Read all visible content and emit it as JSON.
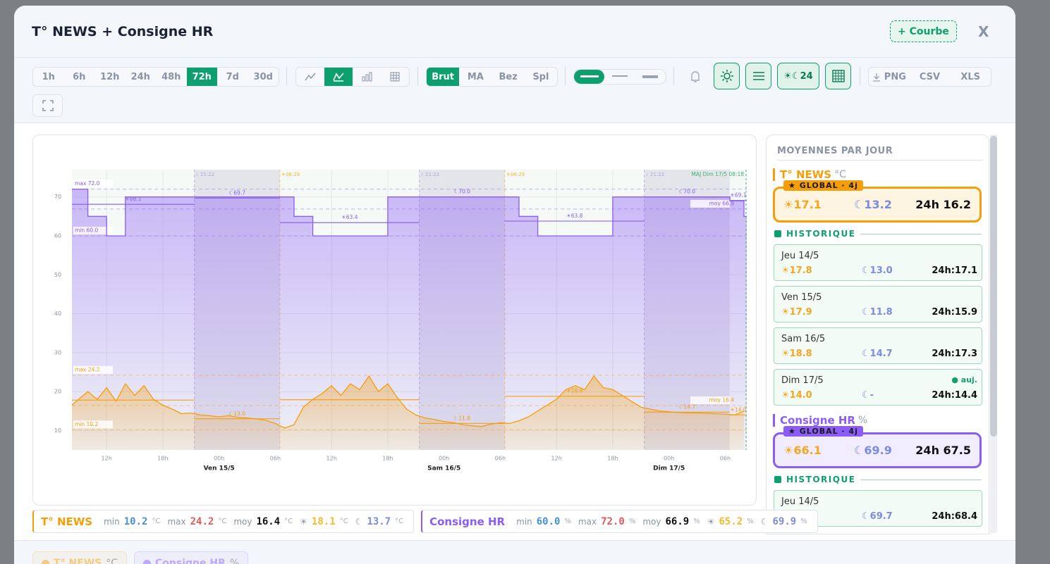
{
  "header": {
    "title": "T° NEWS + Consigne HR",
    "add_button": "+ Courbe",
    "close": "X"
  },
  "toolbar": {
    "ranges": [
      "1h",
      "6h",
      "12h",
      "24h",
      "48h",
      "72h",
      "7d",
      "30d"
    ],
    "active_range": "72h",
    "smoothing": [
      "Brut",
      "MA",
      "Bez",
      "Spl"
    ],
    "active_smoothing": "Brut",
    "daynight_button": "☀☾24",
    "export": [
      "PNG",
      "CSV",
      "XLS"
    ]
  },
  "chart_data": {
    "type": "line",
    "xlim": [
      8.3,
      80.3
    ],
    "ylim": [
      5,
      77
    ],
    "xticks": [
      {
        "value": 12,
        "label": "12h"
      },
      {
        "value": 18,
        "label": "18h"
      },
      {
        "value": 24,
        "label": "00h"
      },
      {
        "value": 30,
        "label": "06h"
      },
      {
        "value": 36,
        "label": "12h"
      },
      {
        "value": 42,
        "label": "18h"
      },
      {
        "value": 48,
        "label": "00h"
      },
      {
        "value": 54,
        "label": "06h"
      },
      {
        "value": 60,
        "label": "12h"
      },
      {
        "value": 66,
        "label": "18h"
      },
      {
        "value": 72,
        "label": "00h"
      },
      {
        "value": 78,
        "label": "06h"
      }
    ],
    "day_labels": [
      {
        "value": 24,
        "label": "Ven 15/5"
      },
      {
        "value": 48,
        "label": "Sam 16/5"
      },
      {
        "value": 72,
        "label": "Dim 17/5"
      }
    ],
    "yticks": [
      10,
      20,
      30,
      40,
      50,
      60,
      70
    ],
    "grid": true,
    "nights": [
      {
        "start": 21.37,
        "end": 30.48,
        "start_label": "☾21:22",
        "end_label": "☀06:29"
      },
      {
        "start": 45.37,
        "end": 54.48,
        "start_label": "☾21:22",
        "end_label": "☀06:29"
      },
      {
        "start": 69.37,
        "end": 78.48,
        "start_label": "☾21:22"
      }
    ],
    "update": {
      "x": 80.3,
      "label": "MAJ Dim 17/5 08:18"
    },
    "series": [
      {
        "name": "Consigne HR",
        "color": "#8b5cf6",
        "x": [
          8.3,
          10,
          10,
          12,
          12,
          14,
          14,
          32,
          32,
          34,
          34,
          42,
          42,
          56,
          56,
          58,
          58,
          66,
          66,
          78.5,
          78.5,
          80,
          80,
          80.3
        ],
        "values": [
          72,
          72,
          65,
          65,
          60,
          60,
          70,
          70,
          65,
          65,
          60,
          60,
          70,
          70,
          65,
          65,
          60,
          60,
          70,
          70,
          69,
          69,
          65,
          65
        ],
        "reference_lines": [
          {
            "value": 72,
            "label": "max 72.0"
          },
          {
            "value": 60,
            "label": "min 60.0"
          },
          {
            "value": 66.9,
            "label": "moy 66.9"
          }
        ],
        "segments": [
          {
            "start": 8.3,
            "end": 21.37,
            "value": 68.1,
            "label": "☀68.1"
          },
          {
            "start": 21.37,
            "end": 30.48,
            "value": 69.7,
            "label": "☾69.7"
          },
          {
            "start": 30.48,
            "end": 45.37,
            "value": 63.4,
            "label": "☀63.4"
          },
          {
            "start": 45.37,
            "end": 54.48,
            "value": 70,
            "label": "☾70.0"
          },
          {
            "start": 54.48,
            "end": 69.37,
            "value": 63.8,
            "label": "☀63.8"
          },
          {
            "start": 69.37,
            "end": 78.48,
            "value": 70,
            "label": "☾70.0"
          },
          {
            "start": 78.48,
            "end": 80.3,
            "value": 69.1,
            "label": "☀69.1"
          }
        ]
      },
      {
        "name": "T° NEWS",
        "color": "#f59e0b",
        "x": [
          8.3,
          9,
          10,
          11,
          12,
          13,
          14,
          15,
          16,
          17,
          18,
          19,
          20,
          21,
          22,
          23,
          24,
          25,
          26,
          27,
          28,
          29,
          30,
          31,
          32,
          33,
          34,
          35,
          36,
          37,
          38,
          39,
          40,
          41,
          42,
          43,
          44,
          45,
          46,
          47,
          48,
          49,
          50,
          51,
          52,
          53,
          54,
          55,
          56,
          57,
          58,
          59,
          60,
          61,
          62,
          63,
          64,
          65,
          66,
          67,
          68,
          69,
          70,
          71,
          72,
          73,
          74,
          75,
          76,
          77,
          78,
          79,
          80
        ],
        "values": [
          16.5,
          18,
          20,
          18,
          21,
          17.5,
          22,
          19,
          21.5,
          18,
          16.5,
          15.5,
          14.3,
          14.5,
          14,
          13.8,
          13.5,
          13.8,
          13.4,
          13.2,
          13,
          12.6,
          11.8,
          10.6,
          11.5,
          16,
          18,
          19.5,
          21.5,
          19,
          22,
          20.5,
          24,
          20,
          22,
          18.5,
          15.5,
          14,
          13.2,
          12.8,
          12.3,
          12,
          11.5,
          11.2,
          11,
          11.6,
          12,
          11.8,
          12.5,
          13.5,
          15,
          16.5,
          18,
          20.5,
          21.5,
          20.5,
          24,
          21,
          20.5,
          19,
          17.5,
          16,
          15.5,
          15,
          14.8,
          14.6,
          14.5,
          14.5,
          14.4,
          14.3,
          14.2,
          14,
          15
        ],
        "reference_lines": [
          {
            "value": 24.2,
            "label": "max 24.2"
          },
          {
            "value": 10.2,
            "label": "min 10.2"
          },
          {
            "value": 16.4,
            "label": "moy 16.4"
          }
        ],
        "segments": [
          {
            "start": 8.3,
            "end": 21.37,
            "value": 17.8
          },
          {
            "start": 21.37,
            "end": 30.48,
            "value": 13,
            "label": "☾13.0"
          },
          {
            "start": 30.48,
            "end": 45.37,
            "value": 17.9
          },
          {
            "start": 45.37,
            "end": 54.48,
            "value": 11.8,
            "label": "☾11.8"
          },
          {
            "start": 54.48,
            "end": 69.37,
            "value": 18.8,
            "label": "☀18.8"
          },
          {
            "start": 69.37,
            "end": 78.48,
            "value": 14.7,
            "label": "☾14.7"
          },
          {
            "start": 78.48,
            "end": 80.3,
            "value": 14,
            "label": "☀14.0"
          }
        ]
      }
    ]
  },
  "stats": [
    {
      "name": "T° NEWS",
      "color": "#f59e0b",
      "items": [
        {
          "label": "min",
          "value": "10.2",
          "unit": "°C",
          "color": "#4a90d9"
        },
        {
          "label": "max",
          "value": "24.2",
          "unit": "°C",
          "color": "#e05a5a"
        },
        {
          "label": "moy",
          "value": "16.4",
          "unit": "°C",
          "color": "#111111"
        },
        {
          "label": "☀",
          "value": "18.1",
          "unit": "°C",
          "color": "#f5b82e"
        },
        {
          "label": "☾",
          "value": "13.7",
          "unit": "°C",
          "color": "#7b8ce0"
        }
      ]
    },
    {
      "name": "Consigne HR",
      "color": "#8b5cf6",
      "items": [
        {
          "label": "min",
          "value": "60.0",
          "unit": "%",
          "color": "#4a90d9"
        },
        {
          "label": "max",
          "value": "72.0",
          "unit": "%",
          "color": "#e05a5a"
        },
        {
          "label": "moy",
          "value": "66.9",
          "unit": "%",
          "color": "#111111"
        },
        {
          "label": "☀",
          "value": "65.2",
          "unit": "%",
          "color": "#f5b82e"
        },
        {
          "label": "☾",
          "value": "69.9",
          "unit": "%",
          "color": "#7b8ce0"
        }
      ]
    }
  ],
  "sidebar": {
    "title": "MOYENNES PAR JOUR",
    "history_label": "HISTORIQUE",
    "groups": [
      {
        "name": "T° NEWS",
        "unit": "°C",
        "color": "#f59e0b",
        "badge": "★ GLOBAL · 4j",
        "global": {
          "sun": "☀17.1",
          "moon": "☾13.2",
          "h24": "24h 16.2"
        },
        "days": [
          {
            "day": "Jeu 14/5",
            "sun": "☀17.8",
            "moon": "☾13.0",
            "h24": "24h:17.1"
          },
          {
            "day": "Ven 15/5",
            "sun": "☀17.9",
            "moon": "☾11.8",
            "h24": "24h:15.9"
          },
          {
            "day": "Sam 16/5",
            "sun": "☀18.8",
            "moon": "☾14.7",
            "h24": "24h:17.3"
          },
          {
            "day": "Dim 17/5",
            "tag": "● auj.",
            "sun": "☀14.0",
            "moon": "☾-",
            "h24": "24h:14.4"
          }
        ]
      },
      {
        "name": "Consigne HR",
        "unit": "%",
        "color": "#8b5cf6",
        "badge": "★ GLOBAL · 4j",
        "global": {
          "sun": "☀66.1",
          "moon": "☾69.9",
          "h24": "24h 67.5"
        },
        "days": [
          {
            "day": "Jeu 14/5",
            "sun": "☀68.1",
            "moon": "☾69.7",
            "h24": "24h:68.4"
          }
        ]
      }
    ]
  },
  "footer_chips": [
    {
      "name": "T° NEWS",
      "unit": "°C",
      "color": "#f59e0b"
    },
    {
      "name": "Consigne HR",
      "unit": "%",
      "color": "#8b5cf6"
    }
  ]
}
